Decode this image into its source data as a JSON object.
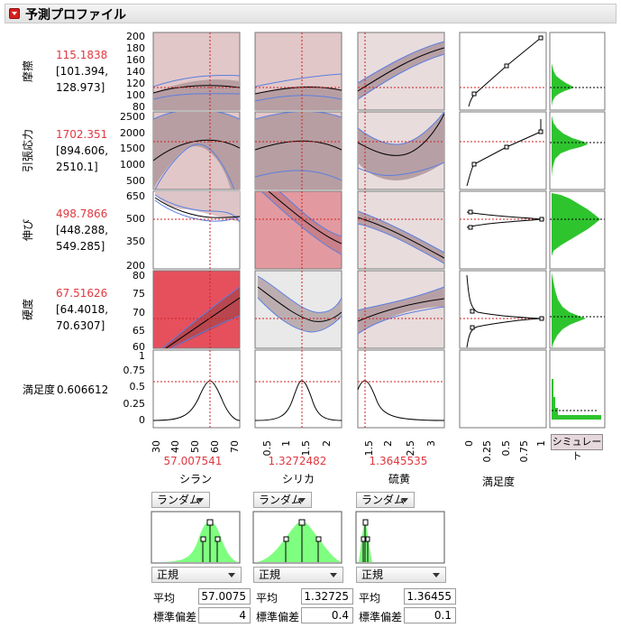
{
  "title": "予測プロファイル",
  "responses": [
    {
      "name": "摩擦",
      "value": "115.1838",
      "ci": [
        "[101.394,",
        "128.973]"
      ],
      "ticks": [
        "200",
        "180",
        "160",
        "140",
        "120",
        "100",
        "80"
      ]
    },
    {
      "name": "引張応力",
      "value": "1702.351",
      "ci": [
        "[894.606,",
        "2510.1]"
      ],
      "ticks": [
        "2500",
        "2000",
        "1500",
        "1000",
        "500"
      ]
    },
    {
      "name": "伸び",
      "value": "498.7866",
      "ci": [
        "[448.288,",
        "549.285]"
      ],
      "ticks": [
        "650",
        "500",
        "350",
        "200"
      ]
    },
    {
      "name": "硬度",
      "value": "67.51626",
      "ci": [
        "[64.4018,",
        "70.6307]"
      ],
      "ticks": [
        "80",
        "75",
        "70",
        "65",
        "60"
      ]
    }
  ],
  "desirability": {
    "label": "満足度",
    "value": "0.606612",
    "ticks": [
      "1",
      "0.75",
      "0.5",
      "0.25",
      "0"
    ],
    "xlabel": "満足度",
    "xticks": [
      "0",
      "0.25",
      "0.5",
      "0.75",
      "1"
    ]
  },
  "factors": [
    {
      "name": "シラン",
      "value": "57.007541",
      "ticks": [
        "30",
        "40",
        "50",
        "60",
        "70"
      ],
      "dist_mode": "ランダム",
      "dist_type": "正規",
      "mean_label": "平均",
      "mean": "57.0075",
      "sd_label": "標準偏差",
      "sd": "4"
    },
    {
      "name": "シリカ",
      "value": "1.3272482",
      "ticks": [
        "0.5",
        "1",
        "1.5",
        "2"
      ],
      "dist_mode": "ランダム",
      "dist_type": "正規",
      "mean_label": "平均",
      "mean": "1.32725",
      "sd_label": "標準偏差",
      "sd": "0.4"
    },
    {
      "name": "硫黄",
      "value": "1.3645535",
      "ticks": [
        "1.5",
        "2",
        "2.5",
        "3"
      ],
      "dist_mode": "ランダム",
      "dist_type": "正規",
      "mean_label": "平均",
      "mean": "1.36455",
      "sd_label": "標準偏差",
      "sd": "0.1"
    }
  ],
  "simulate_label": "シミュレート",
  "colors": {
    "accent_red": "#e0383f",
    "band_blue": "#5b7fe0",
    "hist_green": "#2ec42e",
    "dist_green": "#7fff7f"
  }
}
